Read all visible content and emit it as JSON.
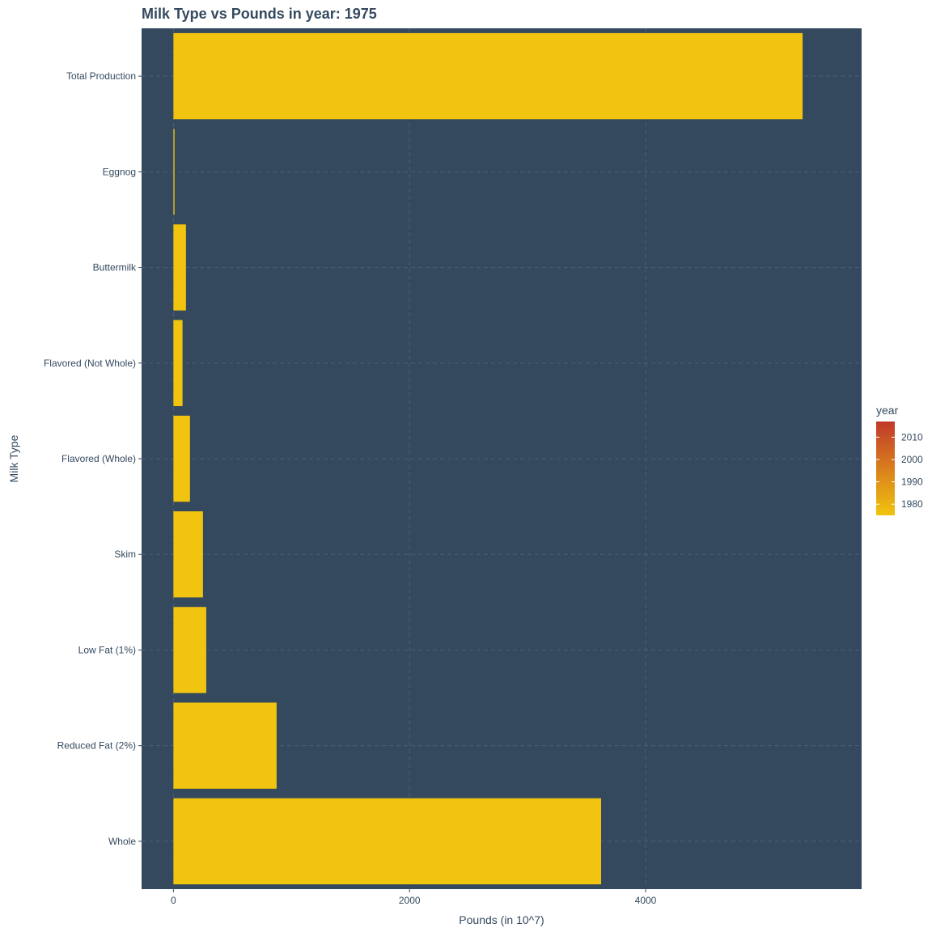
{
  "chart_data": {
    "type": "bar",
    "orientation": "horizontal",
    "title": "Milk Type vs Pounds in year: 1975",
    "xlabel": "Pounds (in 10^7)",
    "ylabel": "Milk Type",
    "categories": [
      "Total Production",
      "Eggnog",
      "Buttermilk",
      "Flavored  (Not Whole)",
      "Flavored (Whole)",
      "Skim",
      "Low Fat (1%)",
      "Reduced Fat (2%)",
      "Whole"
    ],
    "values": [
      5330,
      9,
      106,
      77,
      140,
      250,
      278,
      874,
      3623
    ],
    "xlim": [
      -270,
      5830
    ],
    "xticks": [
      0,
      2000,
      4000
    ],
    "grid": true,
    "bar_color": "#f1c40f",
    "panel_color": "#34495e",
    "legend": {
      "title": "year",
      "placement": "right",
      "labels": [
        "2010",
        "2000",
        "1990",
        "1980"
      ],
      "tick_values": [
        2010,
        2000,
        1990,
        1980
      ],
      "range": [
        1975,
        2017
      ],
      "color_low": "#f1c40f",
      "color_high": "#c0392b"
    }
  }
}
